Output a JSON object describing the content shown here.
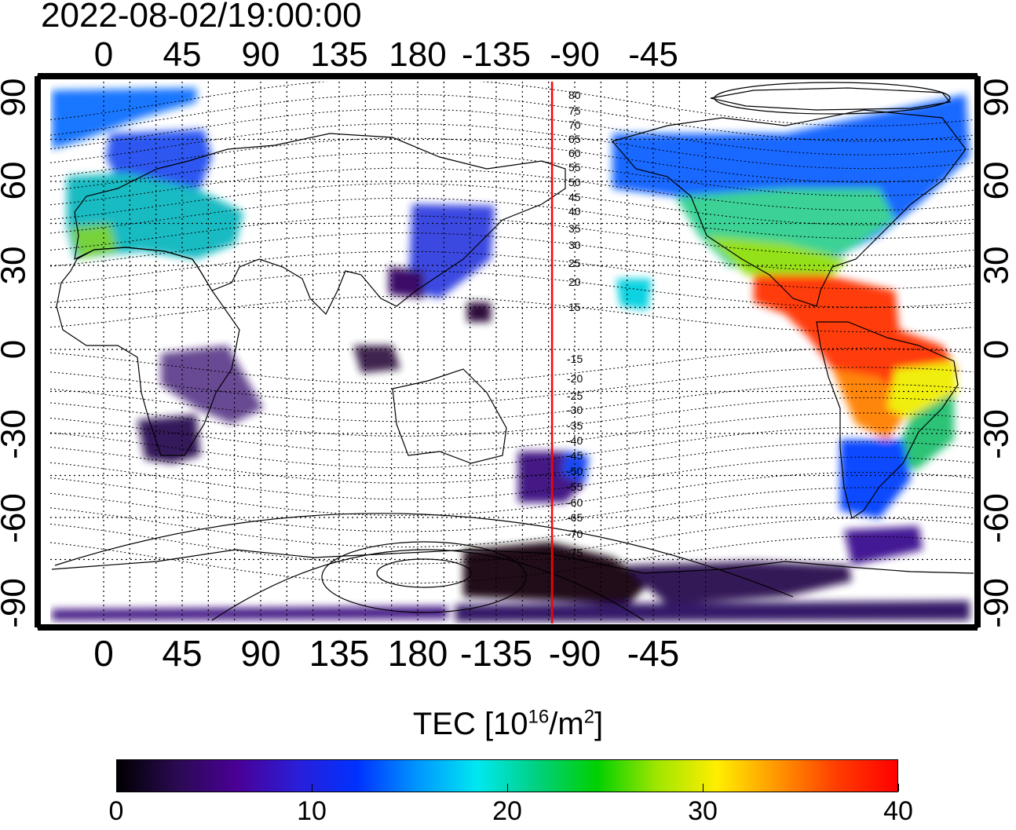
{
  "timestamp": "2022-08-02/19:00:00",
  "map": {
    "projection": "equirectangular",
    "lon_top_labels": [
      "0",
      "45",
      "90",
      "135",
      "180",
      "-135",
      "-90",
      "-45"
    ],
    "lon_bottom_labels": [
      "0",
      "45",
      "90",
      "135",
      "180",
      "-135",
      "-90",
      "-45"
    ],
    "lat_left_labels": [
      "90",
      "60",
      "30",
      "0",
      "-30",
      "-60",
      "-90"
    ],
    "lat_right_labels": [
      "90",
      "60",
      "30",
      "0",
      "-30",
      "-60",
      "-90"
    ],
    "magnetic_latitude_labels_north": [
      "80",
      "75",
      "70",
      "65",
      "60",
      "55",
      "50",
      "45",
      "40",
      "35",
      "30",
      "25",
      "20",
      "15"
    ],
    "magnetic_latitude_labels_south": [
      "-15",
      "-20",
      "-25",
      "-30",
      "-35",
      "-40",
      "-45",
      "-50",
      "-55",
      "-60",
      "-65",
      "-70",
      "-75"
    ],
    "marker_longitude": -103,
    "marker_color": "#ff0000",
    "grid": true
  },
  "colorbar": {
    "title_main": "TEC  [10",
    "title_exp": "16",
    "title_unit": "/m",
    "title_unit_exp": "2",
    "title_close": "]",
    "min": 0,
    "max": 40,
    "tick_labels": [
      "0",
      "10",
      "20",
      "30",
      "40"
    ],
    "colormap": [
      "#000000",
      "#2a0a52",
      "#4a0096",
      "#2a1ed8",
      "#0032ff",
      "#0096ff",
      "#00e8f0",
      "#00d080",
      "#00d000",
      "#a0e600",
      "#ffee00",
      "#ff9600",
      "#ff3c00",
      "#ff0000"
    ]
  }
}
